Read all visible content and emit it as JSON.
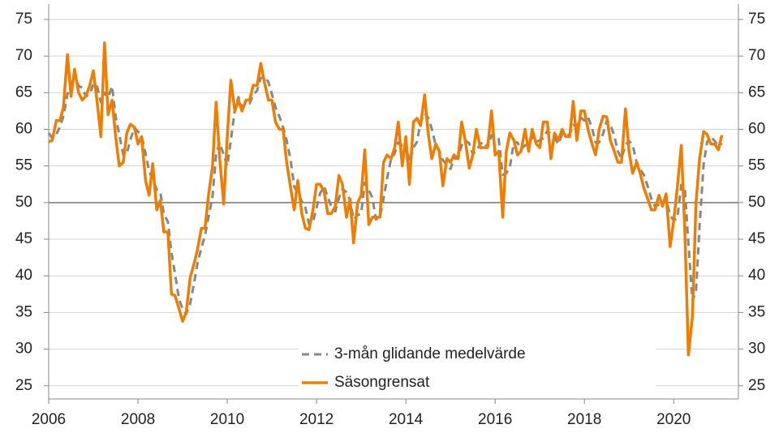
{
  "chart_data": {
    "type": "line",
    "x": [
      2006.0,
      2006.08,
      2006.17,
      2006.25,
      2006.33,
      2006.42,
      2006.5,
      2006.58,
      2006.67,
      2006.75,
      2006.83,
      2006.92,
      2007.0,
      2007.08,
      2007.17,
      2007.25,
      2007.33,
      2007.42,
      2007.5,
      2007.58,
      2007.67,
      2007.75,
      2007.83,
      2007.92,
      2008.0,
      2008.08,
      2008.17,
      2008.25,
      2008.33,
      2008.42,
      2008.5,
      2008.58,
      2008.67,
      2008.75,
      2008.83,
      2008.92,
      2009.0,
      2009.08,
      2009.17,
      2009.25,
      2009.33,
      2009.42,
      2009.5,
      2009.58,
      2009.67,
      2009.75,
      2009.83,
      2009.92,
      2010.0,
      2010.08,
      2010.17,
      2010.25,
      2010.33,
      2010.42,
      2010.5,
      2010.58,
      2010.67,
      2010.75,
      2010.83,
      2010.92,
      2011.0,
      2011.08,
      2011.17,
      2011.25,
      2011.33,
      2011.42,
      2011.5,
      2011.58,
      2011.67,
      2011.75,
      2011.83,
      2011.92,
      2012.0,
      2012.08,
      2012.17,
      2012.25,
      2012.33,
      2012.42,
      2012.5,
      2012.58,
      2012.67,
      2012.75,
      2012.83,
      2012.92,
      2013.0,
      2013.08,
      2013.17,
      2013.25,
      2013.33,
      2013.42,
      2013.5,
      2013.58,
      2013.67,
      2013.75,
      2013.83,
      2013.92,
      2014.0,
      2014.08,
      2014.17,
      2014.25,
      2014.33,
      2014.42,
      2014.5,
      2014.58,
      2014.67,
      2014.75,
      2014.83,
      2014.92,
      2015.0,
      2015.08,
      2015.17,
      2015.25,
      2015.33,
      2015.42,
      2015.5,
      2015.58,
      2015.67,
      2015.75,
      2015.83,
      2015.92,
      2016.0,
      2016.08,
      2016.17,
      2016.25,
      2016.33,
      2016.42,
      2016.5,
      2016.58,
      2016.67,
      2016.75,
      2016.83,
      2016.92,
      2017.0,
      2017.08,
      2017.17,
      2017.25,
      2017.33,
      2017.42,
      2017.5,
      2017.58,
      2017.67,
      2017.75,
      2017.83,
      2017.92,
      2018.0,
      2018.08,
      2018.17,
      2018.25,
      2018.33,
      2018.42,
      2018.5,
      2018.58,
      2018.67,
      2018.75,
      2018.83,
      2018.92,
      2019.0,
      2019.08,
      2019.17,
      2019.25,
      2019.33,
      2019.42,
      2019.5,
      2019.58,
      2019.67,
      2019.75,
      2019.83,
      2019.92,
      2020.0,
      2020.08,
      2020.17,
      2020.25,
      2020.33,
      2020.42,
      2020.5,
      2020.58,
      2020.67,
      2020.75,
      2020.83,
      2020.92,
      2021.0,
      2021.08
    ],
    "series": [
      {
        "name": "3-mån glidande medelvärde",
        "color": "#878787",
        "dash": true,
        "values": [
          59.5,
          58.8,
          59.3,
          60.3,
          61.8,
          64.8,
          65.9,
          67.6,
          65.9,
          65.7,
          64.5,
          64.8,
          66.2,
          66.0,
          63.7,
          65.0,
          64.3,
          65.9,
          61.7,
          59.3,
          56.5,
          56.7,
          58.6,
          60.2,
          59.7,
          59.1,
          56.7,
          54.3,
          53.1,
          51.8,
          51.5,
          48.4,
          47.4,
          43.2,
          40.3,
          36.8,
          35.5,
          34.8,
          36.2,
          38.8,
          41.6,
          43.8,
          45.5,
          48.0,
          50.8,
          56.6,
          58.2,
          56.5,
          55.0,
          58.5,
          62.7,
          64.4,
          63.0,
          63.5,
          63.5,
          64.7,
          65.3,
          67.0,
          67.2,
          66.5,
          64.8,
          63.0,
          61.7,
          60.3,
          58.5,
          55.8,
          52.2,
          51.3,
          50.2,
          49.3,
          47.1,
          47.3,
          49.3,
          51.3,
          52.2,
          50.8,
          49.5,
          48.8,
          50.6,
          51.9,
          51.4,
          50.3,
          47.7,
          48.3,
          48.5,
          52.7,
          51.7,
          50.7,
          47.7,
          48.0,
          50.5,
          53.3,
          56.0,
          56.7,
          58.2,
          57.8,
          58.3,
          55.5,
          57.5,
          58.3,
          61.0,
          62.2,
          61.6,
          60.1,
          57.8,
          57.0,
          55.8,
          55.1,
          54.6,
          56.0,
          56.0,
          57.8,
          58.5,
          58.1,
          56.6,
          57.1,
          58.0,
          58.3,
          57.5,
          59.2,
          58.8,
          58.7,
          53.8,
          54.0,
          54.8,
          58.3,
          58.2,
          57.3,
          57.8,
          58.0,
          59.0,
          58.3,
          58.5,
          58.8,
          59.8,
          59.3,
          58.8,
          58.0,
          59.3,
          59.2,
          59.3,
          60.6,
          60.4,
          61.6,
          61.2,
          61.7,
          60.2,
          58.2,
          58.2,
          59.4,
          61.2,
          60.7,
          59.1,
          57.0,
          56.0,
          57.9,
          58.4,
          57.9,
          55.5,
          54.5,
          53.8,
          52.2,
          50.5,
          49.5,
          49.7,
          49.8,
          50.6,
          48.2,
          47.6,
          47.8,
          52.4,
          51.9,
          44.3,
          36.6,
          37.9,
          46.8,
          55.2,
          58.3,
          59.0,
          58.4,
          57.7,
          58.1
        ]
      },
      {
        "name": "Säsongrensat",
        "color": "#f07d00",
        "dash": false,
        "values": [
          58.3,
          58.5,
          61.2,
          61.2,
          63.0,
          70.2,
          64.5,
          68.2,
          65.0,
          64.0,
          64.5,
          66.0,
          68.0,
          64.0,
          59.0,
          71.8,
          62.0,
          64.0,
          59.0,
          55.0,
          55.5,
          59.5,
          60.7,
          60.3,
          58.0,
          59.0,
          53.0,
          51.0,
          55.3,
          49.0,
          50.3,
          46.0,
          46.0,
          37.5,
          37.3,
          35.5,
          33.8,
          35.0,
          39.8,
          41.5,
          43.5,
          46.5,
          46.5,
          51.0,
          55.0,
          63.7,
          56.0,
          49.8,
          59.0,
          66.7,
          62.5,
          64.0,
          62.5,
          64.0,
          64.0,
          66.0,
          66.0,
          69.0,
          66.5,
          64.0,
          64.0,
          61.0,
          60.0,
          60.0,
          55.5,
          52.0,
          49.0,
          53.0,
          48.5,
          46.5,
          46.3,
          49.0,
          52.5,
          52.5,
          51.5,
          48.5,
          48.5,
          49.5,
          53.7,
          52.5,
          48.0,
          50.5,
          44.5,
          50.0,
          51.0,
          57.2,
          47.0,
          48.0,
          48.0,
          48.0,
          55.5,
          56.5,
          56.0,
          57.5,
          61.0,
          55.0,
          59.0,
          52.5,
          61.0,
          61.5,
          60.5,
          64.7,
          59.5,
          56.0,
          58.0,
          57.0,
          52.3,
          56.0,
          55.5,
          56.5,
          56.0,
          61.0,
          58.5,
          54.7,
          56.5,
          60.0,
          57.5,
          57.5,
          57.5,
          62.5,
          56.5,
          57.0,
          48.0,
          57.0,
          59.5,
          58.5,
          56.5,
          57.0,
          60.0,
          57.0,
          60.0,
          58.0,
          57.5,
          61.0,
          61.0,
          56.0,
          59.5,
          58.5,
          60.0,
          59.0,
          59.0,
          63.8,
          58.5,
          62.5,
          62.5,
          60.0,
          58.0,
          56.5,
          60.0,
          61.8,
          61.7,
          58.5,
          57.0,
          55.5,
          55.5,
          62.8,
          57.0,
          54.0,
          55.5,
          54.0,
          52.0,
          50.5,
          49.0,
          49.0,
          51.0,
          49.5,
          51.2,
          44.0,
          47.5,
          52.0,
          57.8,
          46.0,
          29.2,
          34.5,
          50.0,
          56.0,
          59.7,
          59.3,
          58.0,
          58.0,
          57.2,
          59.2
        ]
      }
    ],
    "xlim": [
      2006,
      2021.45
    ],
    "xticks": [
      2006,
      2008,
      2010,
      2012,
      2014,
      2016,
      2018,
      2020
    ],
    "ylim": [
      23.2,
      77.1
    ],
    "yticks": [
      25,
      30,
      35,
      40,
      45,
      50,
      55,
      60,
      65,
      70,
      75
    ],
    "y2lim": [
      23.2,
      77.1
    ],
    "y2ticks": [
      25,
      30,
      35,
      40,
      45,
      50,
      55,
      60,
      65,
      70,
      75
    ],
    "reference_line": 50,
    "grid": true,
    "legend": "bottom"
  }
}
